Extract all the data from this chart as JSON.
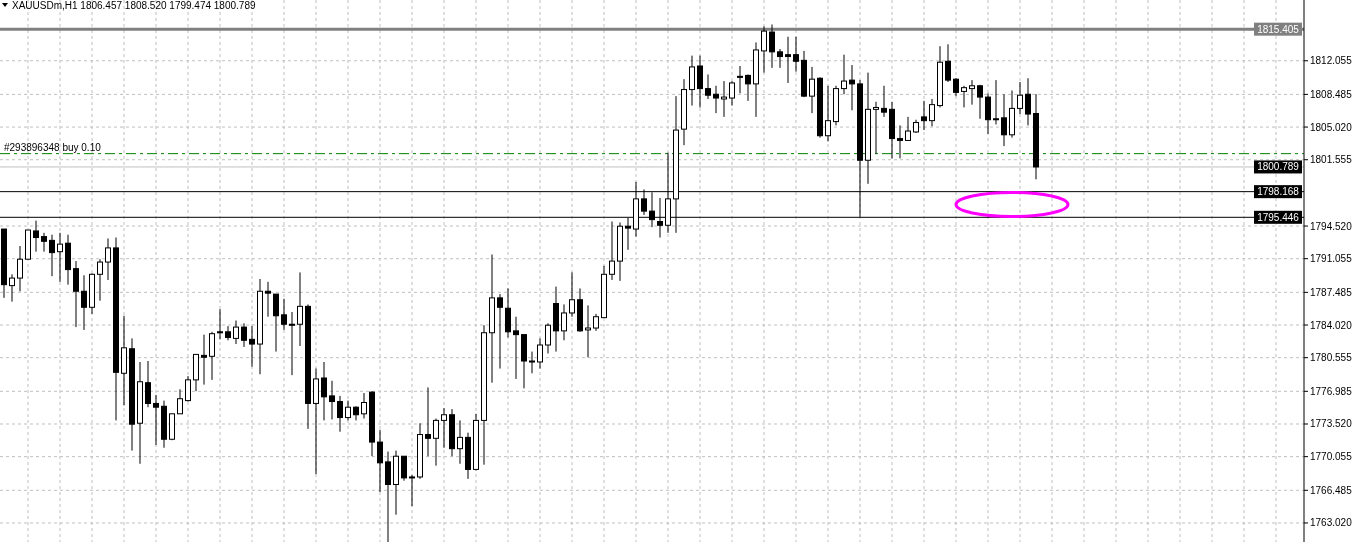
{
  "chart_data": {
    "type": "candlestick",
    "title": "XAUUSDm,H1  1806.457 1808.520 1799.474 1800.789",
    "color": "#000000",
    "grid": true,
    "categories": [
      null,
      null,
      null,
      null,
      null,
      null,
      null,
      null,
      null,
      null,
      null,
      null,
      null,
      null,
      null,
      null,
      null,
      null,
      null,
      null,
      null,
      null,
      null,
      null,
      null,
      null,
      null,
      null,
      null,
      null,
      null,
      null,
      null,
      null,
      null,
      null,
      null,
      null,
      null,
      null,
      null,
      null,
      null,
      null,
      null,
      null,
      null,
      null,
      null,
      null,
      null,
      null,
      null,
      null,
      null,
      null,
      null,
      null,
      null,
      null,
      null,
      null,
      null,
      null,
      null,
      null,
      null,
      null,
      null,
      null,
      null,
      null,
      null,
      null,
      null,
      null,
      null,
      null,
      null,
      null,
      null,
      null,
      null,
      null,
      null,
      null,
      null,
      null,
      null,
      null,
      null,
      null,
      null,
      null,
      null,
      null,
      null,
      null,
      null,
      null,
      null,
      null,
      null,
      null,
      null,
      null,
      null,
      null,
      null,
      null,
      null,
      null,
      null,
      null,
      null,
      null,
      null,
      null,
      null,
      null,
      null,
      null,
      null,
      null,
      null,
      null,
      null,
      null,
      null,
      null,
      null,
      null,
      null,
      null,
      null,
      null,
      null,
      null,
      null,
      null,
      null,
      null,
      null,
      null,
      null,
      null,
      null,
      null,
      null,
      null,
      null,
      null,
      null,
      null,
      null,
      null,
      null,
      null,
      null,
      null,
      null,
      null,
      null
    ],
    "ohlc": [
      [
        1794.2,
        1794.2,
        1786.9,
        1788.3
      ],
      [
        1788.2,
        1789.4,
        1786.5,
        1789.0
      ],
      [
        1789.0,
        1792.4,
        1787.6,
        1791.0
      ],
      [
        1791.0,
        1794.1,
        1791.0,
        1794.1
      ],
      [
        1794.0,
        1795.1,
        1791.8,
        1793.3
      ],
      [
        1793.4,
        1793.8,
        1791.8,
        1792.9
      ],
      [
        1793.0,
        1793.6,
        1789.2,
        1791.7
      ],
      [
        1791.8,
        1793.8,
        1788.6,
        1792.6
      ],
      [
        1792.7,
        1793.6,
        1788.3,
        1789.9
      ],
      [
        1790.0,
        1790.8,
        1783.8,
        1787.6
      ],
      [
        1787.6,
        1789.3,
        1783.5,
        1785.9
      ],
      [
        1785.9,
        1789.5,
        1785.2,
        1789.4
      ],
      [
        1789.4,
        1791.0,
        1786.6,
        1790.7
      ],
      [
        1790.7,
        1793.2,
        1788.8,
        1792.2
      ],
      [
        1792.2,
        1793.3,
        1773.9,
        1779.0
      ],
      [
        1778.9,
        1785.0,
        1775.5,
        1781.6
      ],
      [
        1781.5,
        1782.6,
        1770.7,
        1773.5
      ],
      [
        1773.6,
        1780.1,
        1769.3,
        1778.0
      ],
      [
        1777.9,
        1780.2,
        1775.3,
        1775.7
      ],
      [
        1775.7,
        1776.6,
        1771.3,
        1775.3
      ],
      [
        1775.4,
        1776.0,
        1771.0,
        1771.9
      ],
      [
        1771.9,
        1774.6,
        1771.8,
        1774.6
      ],
      [
        1774.6,
        1777.2,
        1774.6,
        1776.2
      ],
      [
        1776.0,
        1778.6,
        1775.9,
        1778.2
      ],
      [
        1778.2,
        1780.9,
        1777.0,
        1780.9
      ],
      [
        1780.8,
        1783.0,
        1777.7,
        1780.6
      ],
      [
        1780.7,
        1783.3,
        1778.2,
        1783.1
      ],
      [
        1783.3,
        1785.7,
        1782.5,
        1783.2
      ],
      [
        1783.3,
        1783.9,
        1782.4,
        1782.7
      ],
      [
        1782.6,
        1784.5,
        1782.0,
        1783.8
      ],
      [
        1783.8,
        1784.2,
        1781.7,
        1782.4
      ],
      [
        1782.5,
        1783.9,
        1779.6,
        1782.0
      ],
      [
        1782.0,
        1788.9,
        1778.8,
        1787.6
      ],
      [
        1787.6,
        1788.6,
        1784.9,
        1787.4
      ],
      [
        1787.3,
        1787.3,
        1781.2,
        1785.0
      ],
      [
        1785.1,
        1786.8,
        1783.5,
        1784.1
      ],
      [
        1784.1,
        1785.4,
        1778.7,
        1784.0
      ],
      [
        1784.1,
        1789.6,
        1781.8,
        1786.0
      ],
      [
        1786.0,
        1786.2,
        1773.0,
        1775.7
      ],
      [
        1775.7,
        1779.4,
        1768.2,
        1778.3
      ],
      [
        1778.4,
        1780.1,
        1773.9,
        1776.4
      ],
      [
        1776.5,
        1778.1,
        1774.0,
        1775.9
      ],
      [
        1775.9,
        1776.5,
        1772.7,
        1774.2
      ],
      [
        1774.2,
        1776.0,
        1773.9,
        1775.3
      ],
      [
        1775.3,
        1775.4,
        1773.9,
        1774.5
      ],
      [
        1774.6,
        1776.8,
        1774.1,
        1775.8
      ],
      [
        1776.9,
        1777.0,
        1770.1,
        1771.6
      ],
      [
        1771.6,
        1772.9,
        1766.3,
        1769.4
      ],
      [
        1769.5,
        1770.6,
        1761.0,
        1767.1
      ],
      [
        1767.1,
        1770.7,
        1763.9,
        1770.1
      ],
      [
        1770.1,
        1770.1,
        1767.5,
        1767.8
      ],
      [
        1767.9,
        1768.1,
        1764.8,
        1767.9
      ],
      [
        1767.9,
        1773.6,
        1767.7,
        1772.4
      ],
      [
        1772.4,
        1777.4,
        1770.1,
        1772.0
      ],
      [
        1772.0,
        1774.1,
        1769.1,
        1773.9
      ],
      [
        1773.9,
        1775.2,
        1771.0,
        1774.5
      ],
      [
        1774.5,
        1775.1,
        1770.1,
        1770.9
      ],
      [
        1770.9,
        1773.9,
        1769.3,
        1772.1
      ],
      [
        1772.1,
        1772.6,
        1767.7,
        1768.7
      ],
      [
        1768.7,
        1774.6,
        1768.6,
        1773.9
      ],
      [
        1773.9,
        1784.0,
        1769.2,
        1783.2
      ],
      [
        1783.2,
        1791.5,
        1777.9,
        1786.9
      ],
      [
        1786.9,
        1787.3,
        1779.4,
        1785.9
      ],
      [
        1785.8,
        1787.9,
        1782.7,
        1783.3
      ],
      [
        1783.4,
        1784.9,
        1778.3,
        1783.0
      ],
      [
        1783.0,
        1783.0,
        1777.3,
        1780.2
      ],
      [
        1780.2,
        1781.2,
        1778.9,
        1780.2
      ],
      [
        1780.1,
        1782.6,
        1779.4,
        1781.9
      ],
      [
        1781.9,
        1784.2,
        1781.0,
        1784.0
      ],
      [
        1786.3,
        1788.1,
        1781.2,
        1783.4
      ],
      [
        1783.4,
        1786.2,
        1782.4,
        1785.3
      ],
      [
        1785.3,
        1789.6,
        1784.9,
        1786.7
      ],
      [
        1786.7,
        1787.9,
        1783.3,
        1783.4
      ],
      [
        1783.5,
        1786.1,
        1780.6,
        1783.7
      ],
      [
        1783.7,
        1785.2,
        1783.4,
        1784.9
      ],
      [
        1784.8,
        1790.3,
        1784.8,
        1789.4
      ],
      [
        1789.4,
        1795.0,
        1788.8,
        1790.8
      ],
      [
        1790.8,
        1794.9,
        1788.7,
        1794.5
      ],
      [
        1794.5,
        1795.4,
        1792.0,
        1794.3
      ],
      [
        1794.2,
        1799.2,
        1793.4,
        1797.4
      ],
      [
        1797.4,
        1798.4,
        1795.7,
        1796.1
      ],
      [
        1796.1,
        1798.1,
        1794.4,
        1795.2
      ],
      [
        1795.0,
        1797.5,
        1793.3,
        1794.6
      ],
      [
        1794.6,
        1802.3,
        1793.8,
        1797.4
      ],
      [
        1797.4,
        1808.3,
        1793.8,
        1804.7
      ],
      [
        1804.8,
        1810.1,
        1803.1,
        1809.0
      ],
      [
        1809.0,
        1812.6,
        1807.3,
        1811.4
      ],
      [
        1811.5,
        1812.6,
        1807.1,
        1809.1
      ],
      [
        1809.1,
        1810.6,
        1808.0,
        1808.4
      ],
      [
        1808.5,
        1809.4,
        1806.5,
        1808.1
      ],
      [
        1808.0,
        1809.9,
        1806.1,
        1808.2
      ],
      [
        1808.1,
        1809.9,
        1807.3,
        1809.7
      ],
      [
        1810.4,
        1811.5,
        1808.6,
        1810.4
      ],
      [
        1810.5,
        1810.6,
        1807.8,
        1809.6
      ],
      [
        1809.6,
        1814.0,
        1806.1,
        1813.2
      ],
      [
        1813.1,
        1815.7,
        1810.8,
        1815.2
      ],
      [
        1815.1,
        1815.9,
        1811.3,
        1813.0
      ],
      [
        1813.0,
        1813.3,
        1811.3,
        1812.5
      ],
      [
        1812.7,
        1814.6,
        1809.7,
        1812.5
      ],
      [
        1812.7,
        1814.6,
        1810.9,
        1812.0
      ],
      [
        1812.1,
        1813.1,
        1808.2,
        1808.3
      ],
      [
        1808.3,
        1811.4,
        1806.5,
        1810.1
      ],
      [
        1810.2,
        1810.3,
        1803.9,
        1804.1
      ],
      [
        1804.1,
        1809.4,
        1803.5,
        1805.7
      ],
      [
        1805.6,
        1809.4,
        1805.2,
        1809.1
      ],
      [
        1809.1,
        1812.7,
        1808.5,
        1809.9
      ],
      [
        1810.0,
        1811.6,
        1806.8,
        1809.6
      ],
      [
        1809.6,
        1810.0,
        1795.5,
        1801.5
      ],
      [
        1801.5,
        1810.8,
        1799.0,
        1806.9
      ],
      [
        1806.9,
        1807.7,
        1802.2,
        1807.1
      ],
      [
        1807.0,
        1809.4,
        1806.1,
        1806.6
      ],
      [
        1806.9,
        1807.7,
        1801.7,
        1803.8
      ],
      [
        1803.8,
        1805.2,
        1801.7,
        1803.6
      ],
      [
        1803.6,
        1806.1,
        1803.6,
        1804.6
      ],
      [
        1804.5,
        1805.8,
        1804.4,
        1805.5
      ],
      [
        1806.1,
        1807.8,
        1804.7,
        1805.7
      ],
      [
        1805.7,
        1808.0,
        1805.1,
        1807.4
      ],
      [
        1807.3,
        1813.6,
        1807.1,
        1811.9
      ],
      [
        1812.0,
        1813.8,
        1809.8,
        1810.0
      ],
      [
        1810.1,
        1810.2,
        1808.3,
        1808.7
      ],
      [
        1808.8,
        1809.4,
        1807.1,
        1809.2
      ],
      [
        1809.1,
        1810.0,
        1807.4,
        1809.4
      ],
      [
        1809.4,
        1809.5,
        1805.9,
        1808.2
      ],
      [
        1808.2,
        1808.6,
        1804.3,
        1805.8
      ],
      [
        1805.9,
        1810.0,
        1805.3,
        1805.9
      ],
      [
        1806.0,
        1808.5,
        1803.0,
        1804.2
      ],
      [
        1804.2,
        1808.9,
        1803.9,
        1807.0
      ],
      [
        1807.0,
        1809.8,
        1806.4,
        1808.4
      ],
      [
        1808.5,
        1810.2,
        1805.2,
        1806.4
      ],
      [
        1806.457,
        1808.52,
        1799.474,
        1800.789
      ],
      null,
      null,
      null,
      null,
      null,
      null,
      null,
      null,
      null,
      null,
      null,
      null,
      null,
      null,
      null,
      null,
      null,
      null,
      null,
      null,
      null,
      null,
      null,
      null,
      null,
      null,
      null,
      null,
      null,
      null,
      null,
      null,
      null
    ],
    "ylim": [
      1761.0,
      1818.5
    ],
    "yticks": [
      {
        "value": 1763.02,
        "label": "1763.020"
      },
      1766.485,
      1770.055,
      {
        "value": 1773.52,
        "label": "1773.520"
      },
      1776.985,
      1780.555,
      {
        "value": 1784.02,
        "label": "1784.020"
      },
      1787.485,
      1791.055,
      {
        "value": 1794.52,
        "label": "1794.520"
      },
      1801.555,
      {
        "value": 1805.02,
        "label": "1805.020"
      },
      1808.485,
      1812.055
    ],
    "ref_lines": [
      {
        "axis": "y",
        "value": 1815.405,
        "label": "1815.405",
        "color": "#808080"
      },
      {
        "axis": "y",
        "value": 1802.2,
        "label": "#293896348 buy 0.10",
        "color": "#008000",
        "line_style": "dashed"
      },
      {
        "axis": "y",
        "value": 1800.789,
        "label": "1800.789",
        "color": "#c0c0c0"
      },
      {
        "axis": "y",
        "value": 1798.168,
        "label": "1798.168",
        "color": "#000000"
      },
      {
        "axis": "y",
        "value": 1795.446,
        "label": "1795.446",
        "color": "#000000"
      }
    ]
  }
}
